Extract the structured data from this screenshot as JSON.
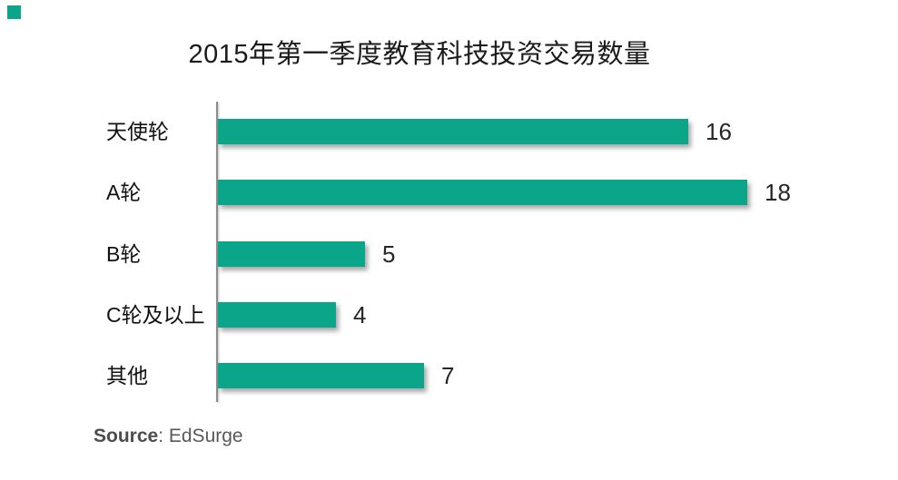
{
  "page": {
    "background_color": "#ffffff"
  },
  "chart_data": {
    "type": "bar",
    "orientation": "horizontal",
    "title": "2015年第一季度教育科技投资交易数量",
    "categories": [
      "天使轮",
      "A轮",
      "B轮",
      "C轮及以上",
      "其他"
    ],
    "values": [
      16,
      18,
      5,
      4,
      7
    ],
    "xlabel": "",
    "ylabel": "",
    "xlim": [
      0,
      20
    ],
    "grid": false,
    "legend": false,
    "value_labels_position": "end-of-bar",
    "bar_color": "#0ba58a",
    "axis_line_color": "#8c8c8c",
    "title_color": "#1a1a1a",
    "label_color": "#111111",
    "value_label_color": "#262626"
  },
  "source": {
    "label_bold": "Source",
    "separator": ": ",
    "name": "EdSurge",
    "text_color": "#595959"
  },
  "decorations": {
    "corner_marker_color": "#0ba58a"
  }
}
